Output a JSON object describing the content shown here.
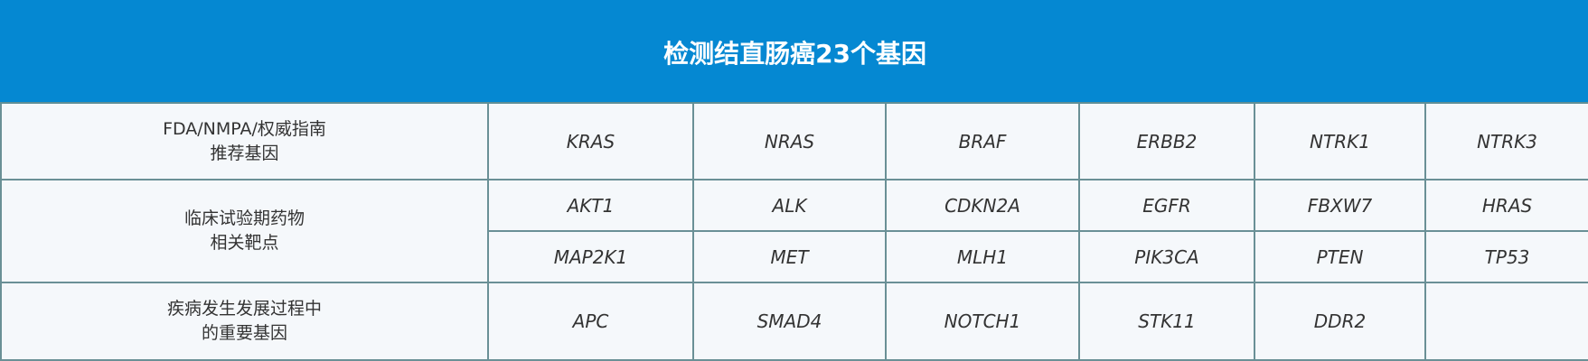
{
  "title": "检测结直肠癌23个基因",
  "groups": [
    {
      "label_line1": "FDA/NMPA/权威指南",
      "label_line2": "推荐基因",
      "rows": [
        [
          "KRAS",
          "NRAS",
          "BRAF",
          "ERBB2",
          "NTRK1",
          "NTRK3"
        ]
      ]
    },
    {
      "label_line1": "临床试验期药物",
      "label_line2": "相关靶点",
      "rows": [
        [
          "AKT1",
          "ALK",
          "CDKN2A",
          "EGFR",
          "FBXW7",
          "HRAS"
        ],
        [
          "MAP2K1",
          "MET",
          "MLH1",
          "PIK3CA",
          "PTEN",
          "TP53"
        ]
      ]
    },
    {
      "label_line1": "疾病发生发展过程中",
      "label_line2": "的重要基因",
      "rows": [
        [
          "APC",
          "SMAD4",
          "NOTCH1",
          "STK11",
          "DDR2",
          ""
        ]
      ]
    }
  ],
  "colors": {
    "header": "#0588d2",
    "cell_bg": "#f5f8fb",
    "border": "#6a9096"
  }
}
